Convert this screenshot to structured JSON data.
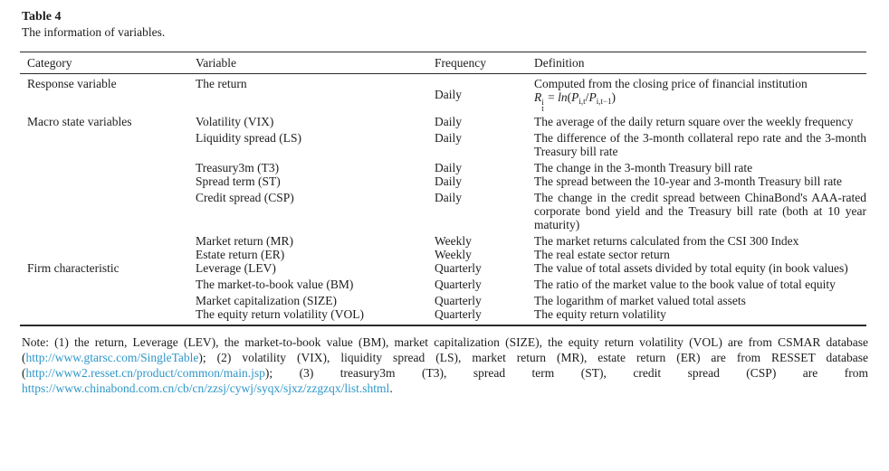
{
  "page": {
    "table_label": "Table 4",
    "table_caption": "The information of variables."
  },
  "table": {
    "columns": [
      "Category",
      "Variable",
      "Frequency",
      "Definition"
    ],
    "rows": [
      {
        "category": "Response variable",
        "variable": "The return",
        "frequency": "Daily",
        "definition": "Computed from the closing price of financial institution"
      },
      {
        "category": "Macro state variables",
        "variable": "Volatility (VIX)",
        "frequency": "Daily",
        "definition": "The average of the daily return square over the weekly frequency"
      },
      {
        "category": "",
        "variable": "Liquidity spread (LS)",
        "frequency": "Daily",
        "definition": "The difference of the 3-month collateral repo rate and the 3-month Treasury bill rate"
      },
      {
        "category": "",
        "variable": "Treasury3m (T3)",
        "frequency": "Daily",
        "definition": "The change in the 3-month Treasury bill rate"
      },
      {
        "category": "",
        "variable": "Spread term (ST)",
        "frequency": "Daily",
        "definition": "The spread between the 10-year and 3-month Treasury bill rate"
      },
      {
        "category": "",
        "variable": "Credit spread (CSP)",
        "frequency": "Daily",
        "definition": "The change in the credit spread between ChinaBond's AAA-rated corporate bond yield and the Treasury bill rate (both at 10 year maturity)"
      },
      {
        "category": "",
        "variable": "Market return (MR)",
        "frequency": "Weekly",
        "definition": "The market returns calculated from the CSI 300 Index"
      },
      {
        "category": "",
        "variable": "Estate return (ER)",
        "frequency": "Weekly",
        "definition": "The real estate sector return"
      },
      {
        "category": "Firm characteristic",
        "variable": "Leverage (LEV)",
        "frequency": "Quarterly",
        "definition": "The value of total assets divided by total equity (in book values)"
      },
      {
        "category": "",
        "variable": "The market-to-book value (BM)",
        "frequency": "Quarterly",
        "definition": "The ratio of the market value to the book value of total equity"
      },
      {
        "category": "",
        "variable": "Market capitalization (SIZE)",
        "frequency": "Quarterly",
        "definition": "The logarithm of market valued total assets"
      },
      {
        "category": "",
        "variable": "The equity return volatility (VOL)",
        "frequency": "Quarterly",
        "definition": "The equity return volatility"
      }
    ]
  },
  "formula": {
    "base": "R",
    "sup": "i",
    "sub": "t",
    "equals": "=",
    "func": "ln",
    "open": "(",
    "p1": "P",
    "p1_sub": "i,t",
    "slash": "/",
    "p2": "P",
    "p2_sub": "i,t−1",
    "close": ")"
  },
  "note": {
    "part1": "Note: (1) the return, Leverage (LEV), the market-to-book value (BM), market capitalization (SIZE), the equity return volatility (VOL) are from CSMAR database (",
    "link1": "http://www.gtarsc.com/SingleTable",
    "part2": "); (2) volatility (VIX), liquidity spread (LS), market return (MR), estate return (ER) are from RESSET database (",
    "link2": "http://www2.resset.cn/product/common/main.jsp",
    "part3": "); (3) treasury3m (T3), spread term (ST), credit spread (CSP) are from ",
    "link3": "https://www.chinabond.com.cn/cb/cn/zzsj/cywj/syqx/sjxz/zzgzqx/list.shtml",
    "part4": "."
  },
  "colors": {
    "link": "#2e96c8",
    "text": "#1c1c1c",
    "rule": "#2b2b2b"
  }
}
